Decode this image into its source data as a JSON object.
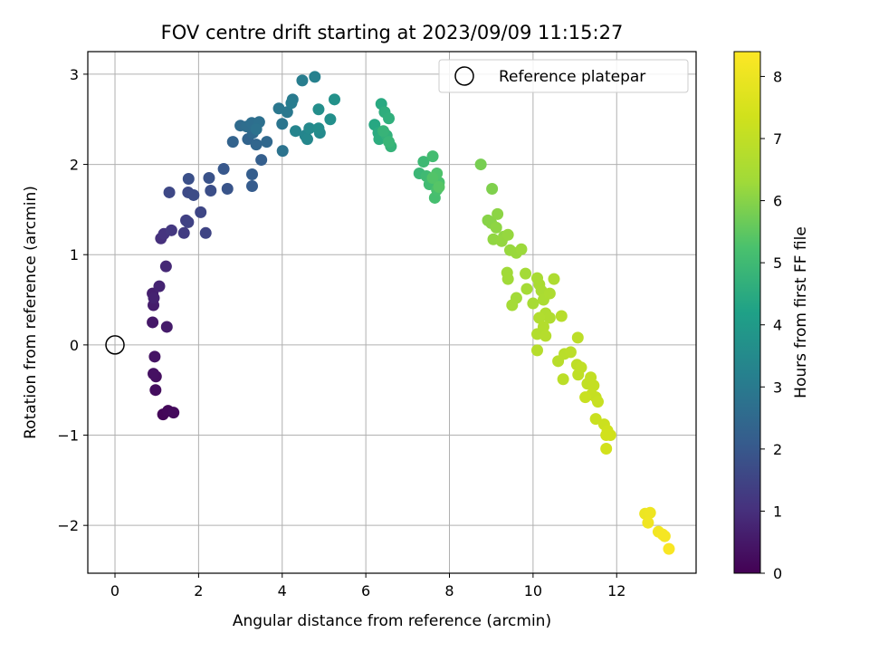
{
  "chart_data": {
    "type": "scatter",
    "title": "FOV centre drift starting at 2023/09/09 11:15:27",
    "xlabel": "Angular distance from reference (arcmin)",
    "ylabel": "Rotation from reference (arcmin)",
    "xlim": [
      -0.65,
      13.9
    ],
    "ylim": [
      -2.53,
      3.25
    ],
    "xticks": [
      "0",
      "2",
      "4",
      "6",
      "8",
      "10",
      "12"
    ],
    "yticks": [
      "−2",
      "−1",
      "0",
      "1",
      "2",
      "3"
    ],
    "grid": true,
    "legend": {
      "position": "top-right",
      "entries": [
        "Reference platepar"
      ]
    },
    "reference_point": {
      "x": 0,
      "y": 0,
      "label": "Reference platepar"
    },
    "colorbar": {
      "label": "Hours from first FF file",
      "range": [
        0,
        8.4
      ],
      "ticks": [
        "0",
        "1",
        "2",
        "3",
        "4",
        "5",
        "6",
        "7",
        "8"
      ],
      "colormap": "viridis"
    },
    "points": [
      {
        "x": 1.15,
        "y": -0.77,
        "h": 0.1
      },
      {
        "x": 1.27,
        "y": -0.73,
        "h": 0.15
      },
      {
        "x": 1.4,
        "y": -0.75,
        "h": 0.2
      },
      {
        "x": 0.98,
        "y": -0.35,
        "h": 0.3
      },
      {
        "x": 0.92,
        "y": -0.32,
        "h": 0.35
      },
      {
        "x": 0.97,
        "y": -0.5,
        "h": 0.25
      },
      {
        "x": 0.95,
        "y": -0.13,
        "h": 0.4
      },
      {
        "x": 0.9,
        "y": 0.25,
        "h": 0.5
      },
      {
        "x": 1.24,
        "y": 0.2,
        "h": 0.55
      },
      {
        "x": 0.92,
        "y": 0.44,
        "h": 0.6
      },
      {
        "x": 0.9,
        "y": 0.57,
        "h": 0.65
      },
      {
        "x": 0.93,
        "y": 0.52,
        "h": 0.7
      },
      {
        "x": 1.06,
        "y": 0.65,
        "h": 0.75
      },
      {
        "x": 1.22,
        "y": 0.87,
        "h": 0.85
      },
      {
        "x": 1.1,
        "y": 1.18,
        "h": 1.0
      },
      {
        "x": 1.17,
        "y": 1.23,
        "h": 1.1
      },
      {
        "x": 1.35,
        "y": 1.27,
        "h": 1.2
      },
      {
        "x": 1.65,
        "y": 1.24,
        "h": 1.3
      },
      {
        "x": 1.7,
        "y": 1.38,
        "h": 1.4
      },
      {
        "x": 1.75,
        "y": 1.36,
        "h": 1.45
      },
      {
        "x": 2.17,
        "y": 1.24,
        "h": 1.5
      },
      {
        "x": 2.05,
        "y": 1.47,
        "h": 1.55
      },
      {
        "x": 1.3,
        "y": 1.69,
        "h": 1.6
      },
      {
        "x": 1.75,
        "y": 1.69,
        "h": 1.65
      },
      {
        "x": 1.88,
        "y": 1.66,
        "h": 1.7
      },
      {
        "x": 2.29,
        "y": 1.71,
        "h": 1.75
      },
      {
        "x": 1.76,
        "y": 1.84,
        "h": 1.8
      },
      {
        "x": 2.25,
        "y": 1.85,
        "h": 1.85
      },
      {
        "x": 2.69,
        "y": 1.73,
        "h": 1.9
      },
      {
        "x": 2.6,
        "y": 1.95,
        "h": 2.0
      },
      {
        "x": 3.28,
        "y": 1.76,
        "h": 2.1
      },
      {
        "x": 3.28,
        "y": 1.89,
        "h": 2.15
      },
      {
        "x": 3.5,
        "y": 2.05,
        "h": 2.2
      },
      {
        "x": 2.82,
        "y": 2.25,
        "h": 2.3
      },
      {
        "x": 3.18,
        "y": 2.28,
        "h": 2.35
      },
      {
        "x": 3.38,
        "y": 2.22,
        "h": 2.4
      },
      {
        "x": 3.63,
        "y": 2.25,
        "h": 2.45
      },
      {
        "x": 3.3,
        "y": 2.35,
        "h": 2.5
      },
      {
        "x": 3.0,
        "y": 2.43,
        "h": 2.55
      },
      {
        "x": 3.15,
        "y": 2.42,
        "h": 2.6
      },
      {
        "x": 3.27,
        "y": 2.46,
        "h": 2.65
      },
      {
        "x": 3.45,
        "y": 2.47,
        "h": 2.7
      },
      {
        "x": 3.38,
        "y": 2.39,
        "h": 2.75
      },
      {
        "x": 4.01,
        "y": 2.15,
        "h": 2.8
      },
      {
        "x": 4.0,
        "y": 2.45,
        "h": 2.85
      },
      {
        "x": 3.92,
        "y": 2.62,
        "h": 2.9
      },
      {
        "x": 4.12,
        "y": 2.58,
        "h": 2.95
      },
      {
        "x": 4.25,
        "y": 2.72,
        "h": 3.0
      },
      {
        "x": 4.22,
        "y": 2.68,
        "h": 3.05
      },
      {
        "x": 4.48,
        "y": 2.93,
        "h": 3.1
      },
      {
        "x": 4.78,
        "y": 2.97,
        "h": 3.2
      },
      {
        "x": 4.32,
        "y": 2.37,
        "h": 3.3
      },
      {
        "x": 4.55,
        "y": 2.32,
        "h": 3.35
      },
      {
        "x": 4.6,
        "y": 2.28,
        "h": 3.4
      },
      {
        "x": 4.65,
        "y": 2.4,
        "h": 3.45
      },
      {
        "x": 4.9,
        "y": 2.35,
        "h": 3.5
      },
      {
        "x": 4.87,
        "y": 2.4,
        "h": 3.55
      },
      {
        "x": 4.87,
        "y": 2.61,
        "h": 3.6
      },
      {
        "x": 5.15,
        "y": 2.5,
        "h": 3.65
      },
      {
        "x": 5.25,
        "y": 2.72,
        "h": 3.7
      },
      {
        "x": 6.21,
        "y": 2.44,
        "h": 4.4
      },
      {
        "x": 6.37,
        "y": 2.67,
        "h": 4.45
      },
      {
        "x": 6.3,
        "y": 2.35,
        "h": 4.5
      },
      {
        "x": 6.32,
        "y": 2.28,
        "h": 4.55
      },
      {
        "x": 6.45,
        "y": 2.58,
        "h": 4.6
      },
      {
        "x": 6.55,
        "y": 2.51,
        "h": 4.65
      },
      {
        "x": 6.5,
        "y": 2.32,
        "h": 4.7
      },
      {
        "x": 6.6,
        "y": 2.2,
        "h": 4.75
      },
      {
        "x": 6.42,
        "y": 2.37,
        "h": 4.8
      },
      {
        "x": 6.55,
        "y": 2.25,
        "h": 4.85
      },
      {
        "x": 7.28,
        "y": 1.9,
        "h": 4.9
      },
      {
        "x": 7.38,
        "y": 2.03,
        "h": 4.95
      },
      {
        "x": 7.45,
        "y": 1.87,
        "h": 5.0
      },
      {
        "x": 7.52,
        "y": 1.78,
        "h": 5.05
      },
      {
        "x": 7.6,
        "y": 2.09,
        "h": 5.1
      },
      {
        "x": 7.65,
        "y": 1.63,
        "h": 5.15
      },
      {
        "x": 7.7,
        "y": 1.72,
        "h": 5.2
      },
      {
        "x": 7.75,
        "y": 1.8,
        "h": 5.25
      },
      {
        "x": 7.7,
        "y": 1.9,
        "h": 5.3
      },
      {
        "x": 7.6,
        "y": 1.85,
        "h": 5.35
      },
      {
        "x": 7.75,
        "y": 1.75,
        "h": 5.4
      },
      {
        "x": 8.75,
        "y": 2.0,
        "h": 5.8
      },
      {
        "x": 9.02,
        "y": 1.73,
        "h": 5.9
      },
      {
        "x": 8.92,
        "y": 1.38,
        "h": 6.0
      },
      {
        "x": 9.0,
        "y": 1.35,
        "h": 6.02
      },
      {
        "x": 9.15,
        "y": 1.45,
        "h": 6.05
      },
      {
        "x": 9.12,
        "y": 1.3,
        "h": 6.08
      },
      {
        "x": 9.3,
        "y": 1.2,
        "h": 6.1
      },
      {
        "x": 9.05,
        "y": 1.17,
        "h": 6.12
      },
      {
        "x": 9.25,
        "y": 1.15,
        "h": 6.15
      },
      {
        "x": 9.4,
        "y": 1.22,
        "h": 6.18
      },
      {
        "x": 9.45,
        "y": 1.05,
        "h": 6.2
      },
      {
        "x": 9.6,
        "y": 1.02,
        "h": 6.22
      },
      {
        "x": 9.72,
        "y": 1.06,
        "h": 6.25
      },
      {
        "x": 9.38,
        "y": 0.8,
        "h": 6.3
      },
      {
        "x": 9.4,
        "y": 0.73,
        "h": 6.32
      },
      {
        "x": 9.6,
        "y": 0.52,
        "h": 6.35
      },
      {
        "x": 9.82,
        "y": 0.79,
        "h": 6.38
      },
      {
        "x": 9.85,
        "y": 0.62,
        "h": 6.4
      },
      {
        "x": 9.5,
        "y": 0.44,
        "h": 6.42
      },
      {
        "x": 10.0,
        "y": 0.46,
        "h": 6.45
      },
      {
        "x": 10.1,
        "y": 0.74,
        "h": 6.48
      },
      {
        "x": 10.15,
        "y": 0.67,
        "h": 6.5
      },
      {
        "x": 10.2,
        "y": 0.6,
        "h": 6.52
      },
      {
        "x": 10.25,
        "y": 0.5,
        "h": 6.55
      },
      {
        "x": 10.4,
        "y": 0.57,
        "h": 6.58
      },
      {
        "x": 10.5,
        "y": 0.73,
        "h": 6.6
      },
      {
        "x": 10.3,
        "y": 0.35,
        "h": 6.62
      },
      {
        "x": 10.4,
        "y": 0.3,
        "h": 6.65
      },
      {
        "x": 10.15,
        "y": 0.3,
        "h": 6.68
      },
      {
        "x": 10.1,
        "y": 0.12,
        "h": 6.7
      },
      {
        "x": 10.25,
        "y": 0.2,
        "h": 6.72
      },
      {
        "x": 10.3,
        "y": 0.1,
        "h": 6.75
      },
      {
        "x": 10.1,
        "y": -0.06,
        "h": 6.78
      },
      {
        "x": 10.68,
        "y": 0.32,
        "h": 6.8
      },
      {
        "x": 10.6,
        "y": -0.18,
        "h": 6.82
      },
      {
        "x": 10.75,
        "y": -0.1,
        "h": 6.85
      },
      {
        "x": 10.9,
        "y": -0.08,
        "h": 6.88
      },
      {
        "x": 10.72,
        "y": -0.38,
        "h": 6.9
      },
      {
        "x": 11.07,
        "y": 0.08,
        "h": 6.92
      },
      {
        "x": 11.05,
        "y": -0.22,
        "h": 6.95
      },
      {
        "x": 11.08,
        "y": -0.33,
        "h": 6.98
      },
      {
        "x": 11.15,
        "y": -0.25,
        "h": 7.0
      },
      {
        "x": 11.3,
        "y": -0.43,
        "h": 7.02
      },
      {
        "x": 11.38,
        "y": -0.36,
        "h": 7.05
      },
      {
        "x": 11.45,
        "y": -0.45,
        "h": 7.08
      },
      {
        "x": 11.4,
        "y": -0.55,
        "h": 7.1
      },
      {
        "x": 11.5,
        "y": -0.58,
        "h": 7.12
      },
      {
        "x": 11.55,
        "y": -0.63,
        "h": 7.15
      },
      {
        "x": 11.25,
        "y": -0.58,
        "h": 7.18
      },
      {
        "x": 11.5,
        "y": -0.82,
        "h": 7.2
      },
      {
        "x": 11.7,
        "y": -0.88,
        "h": 7.25
      },
      {
        "x": 11.78,
        "y": -0.95,
        "h": 7.3
      },
      {
        "x": 11.85,
        "y": -1.0,
        "h": 7.35
      },
      {
        "x": 11.75,
        "y": -1.0,
        "h": 7.38
      },
      {
        "x": 11.75,
        "y": -1.15,
        "h": 7.4
      },
      {
        "x": 12.68,
        "y": -1.87,
        "h": 8.0
      },
      {
        "x": 12.8,
        "y": -1.86,
        "h": 8.05
      },
      {
        "x": 12.75,
        "y": -1.97,
        "h": 8.1
      },
      {
        "x": 13.0,
        "y": -2.07,
        "h": 8.15
      },
      {
        "x": 13.15,
        "y": -2.12,
        "h": 8.2
      },
      {
        "x": 13.1,
        "y": -2.1,
        "h": 8.22
      },
      {
        "x": 13.25,
        "y": -2.26,
        "h": 8.28
      }
    ]
  }
}
